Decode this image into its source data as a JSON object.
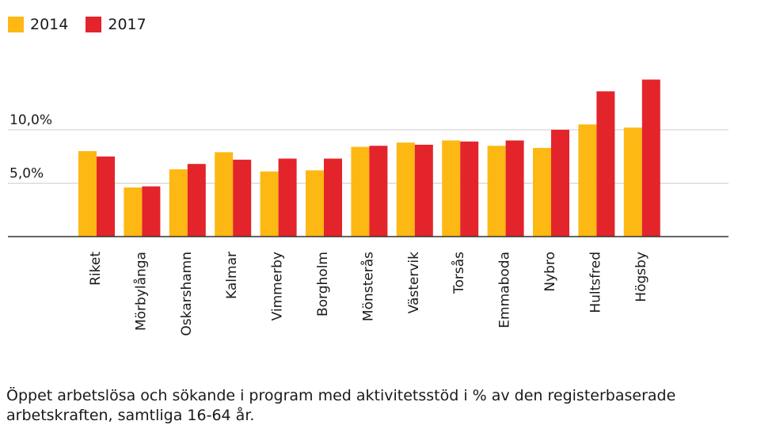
{
  "legend": [
    {
      "label": "2014",
      "color": "#FDB813"
    },
    {
      "label": "2017",
      "color": "#E3242B"
    }
  ],
  "caption": "Öppet arbetslösa och sökande i program med aktivitetsstöd i % av den registerbaserade arbetskraften, samtliga 16-64 år.",
  "chart_data": {
    "type": "bar",
    "categories": [
      "Riket",
      "Mörbylånga",
      "Oskarshamn",
      "Kalmar",
      "Vimmerby",
      "Borgholm",
      "Mönsterås",
      "Västervik",
      "Torsås",
      "Emmaboda",
      "Nybro",
      "Hultsfred",
      "Högsby"
    ],
    "series": [
      {
        "name": "2014",
        "color": "#FDB813",
        "values": [
          8.0,
          4.6,
          6.3,
          7.9,
          6.1,
          6.2,
          8.4,
          8.8,
          9.0,
          8.5,
          8.3,
          10.5,
          10.2
        ]
      },
      {
        "name": "2017",
        "color": "#E3242B",
        "values": [
          7.5,
          4.7,
          6.8,
          7.2,
          7.3,
          7.3,
          8.5,
          8.6,
          8.9,
          9.0,
          10.0,
          13.6,
          14.7
        ]
      }
    ],
    "yticks": [
      5,
      10
    ],
    "ytick_labels": [
      "5,0%",
      "10,0%"
    ],
    "ylim": [
      0,
      15
    ],
    "grid": true,
    "legend_position": "top-left"
  }
}
